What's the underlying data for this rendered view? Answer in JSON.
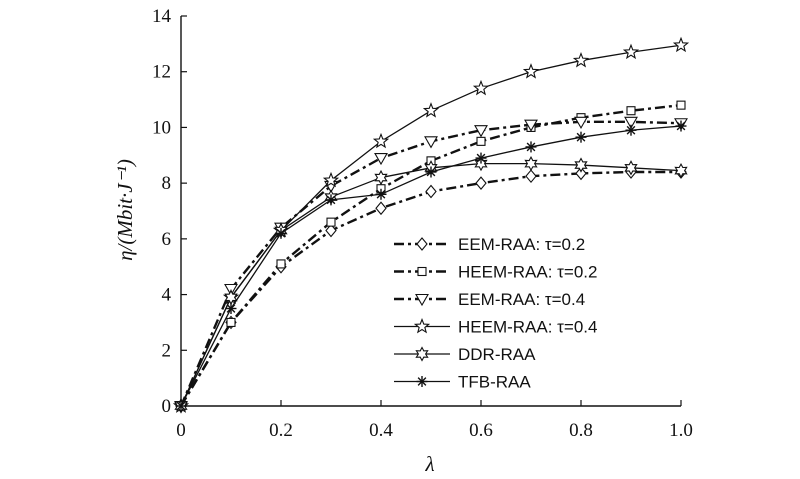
{
  "chart_data": {
    "type": "line",
    "xlabel": "λ",
    "ylabel": "η/(Mbit·J⁻¹)",
    "xlim": [
      0,
      1.0
    ],
    "ylim": [
      0,
      14
    ],
    "x_ticks": [
      "0",
      "0.2",
      "0.4",
      "0.6",
      "0.8",
      "1.0"
    ],
    "y_ticks": [
      "0",
      "2",
      "4",
      "6",
      "8",
      "10",
      "12",
      "14"
    ],
    "x": [
      0,
      0.1,
      0.2,
      0.3,
      0.4,
      0.5,
      0.6,
      0.7,
      0.8,
      0.9,
      1.0
    ],
    "legend_position": "lower-right",
    "grid": false,
    "series": [
      {
        "name": "EEM-RAA: τ=0.2",
        "marker": "diamond",
        "dash": "dashdot",
        "width": 2.4,
        "values": [
          0,
          3.0,
          5.0,
          6.3,
          7.1,
          7.7,
          8.0,
          8.25,
          8.35,
          8.4,
          8.4
        ]
      },
      {
        "name": "HEEM-RAA: τ=0.2",
        "marker": "square",
        "dash": "dashdot",
        "width": 2.4,
        "values": [
          0,
          3.0,
          5.1,
          6.6,
          7.8,
          8.8,
          9.5,
          10.0,
          10.35,
          10.6,
          10.8
        ]
      },
      {
        "name": "EEM-RAA: τ=0.4",
        "marker": "triangle-down",
        "dash": "dashdot",
        "width": 2.4,
        "values": [
          0,
          4.2,
          6.4,
          7.9,
          8.9,
          9.5,
          9.9,
          10.1,
          10.2,
          10.2,
          10.15
        ]
      },
      {
        "name": "HEEM-RAA: τ=0.4",
        "marker": "star5",
        "dash": "solid",
        "width": 1.3,
        "values": [
          0,
          3.9,
          6.3,
          8.1,
          9.5,
          10.6,
          11.4,
          12.0,
          12.4,
          12.7,
          12.95
        ]
      },
      {
        "name": "DDR-RAA",
        "marker": "star6",
        "dash": "solid",
        "width": 1.3,
        "values": [
          0,
          3.9,
          6.3,
          7.5,
          8.2,
          8.55,
          8.7,
          8.7,
          8.65,
          8.55,
          8.45
        ]
      },
      {
        "name": "TFB-RAA",
        "marker": "asterisk",
        "dash": "solid",
        "width": 1.3,
        "values": [
          0,
          3.5,
          6.2,
          7.4,
          7.6,
          8.4,
          8.9,
          9.3,
          9.65,
          9.9,
          10.05
        ]
      }
    ]
  }
}
